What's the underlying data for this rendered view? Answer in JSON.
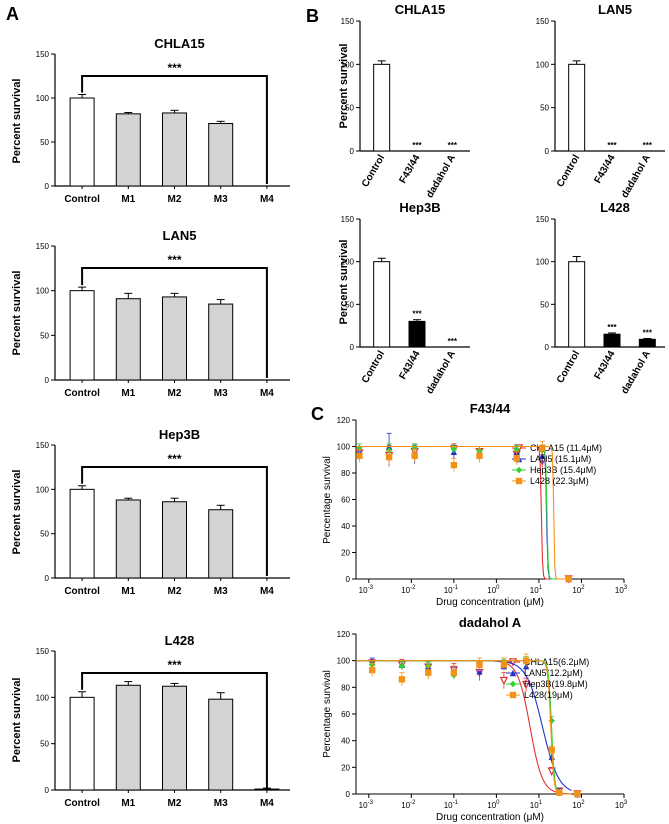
{
  "panels": {
    "A": "A",
    "B": "B",
    "C": "C"
  },
  "chart_data": [
    {
      "id": "A1",
      "type": "bar",
      "title": "CHLA15",
      "ylabel": "Percent survival",
      "ylim": [
        0,
        150
      ],
      "yticks": [
        0,
        50,
        100,
        150
      ],
      "categories": [
        "Control",
        "M1",
        "M2",
        "M3",
        "M4"
      ],
      "values": [
        100,
        82,
        83,
        71,
        0
      ],
      "errors": [
        4,
        1.5,
        3,
        2.5,
        0
      ],
      "significance": "***",
      "bracket": [
        0,
        4
      ]
    },
    {
      "id": "A2",
      "type": "bar",
      "title": "LAN5",
      "ylabel": "Percent survival",
      "ylim": [
        0,
        150
      ],
      "yticks": [
        0,
        50,
        100,
        150
      ],
      "categories": [
        "Control",
        "M1",
        "M2",
        "M3",
        "M4"
      ],
      "values": [
        100,
        91,
        93,
        85,
        0
      ],
      "errors": [
        4,
        6,
        4,
        5,
        0
      ],
      "significance": "***",
      "bracket": [
        0,
        4
      ]
    },
    {
      "id": "A3",
      "type": "bar",
      "title": "Hep3B",
      "ylabel": "Percent survival",
      "ylim": [
        0,
        150
      ],
      "yticks": [
        0,
        50,
        100,
        150
      ],
      "categories": [
        "Control",
        "M1",
        "M2",
        "M3",
        "M4"
      ],
      "values": [
        100,
        88,
        86,
        77,
        0
      ],
      "errors": [
        4,
        2,
        4,
        5,
        0
      ],
      "significance": "***",
      "bracket": [
        0,
        4
      ]
    },
    {
      "id": "A4",
      "type": "bar",
      "title": "L428",
      "ylabel": "Percent survival",
      "ylim": [
        0,
        150
      ],
      "yticks": [
        0,
        50,
        100,
        150
      ],
      "categories": [
        "Control",
        "M1",
        "M2",
        "M3",
        "M4"
      ],
      "values": [
        100,
        113,
        112,
        98,
        1
      ],
      "errors": [
        6,
        4,
        3,
        7,
        1
      ],
      "significance": "***",
      "bracket": [
        0,
        4
      ]
    },
    {
      "id": "B1",
      "type": "bar",
      "title": "CHLA15",
      "ylabel": "Percent survival",
      "ylim": [
        0,
        150
      ],
      "yticks": [
        0,
        50,
        100,
        150
      ],
      "categories": [
        "Control",
        "F43/44",
        "dadahol A"
      ],
      "values": [
        100,
        0,
        0
      ],
      "errors": [
        4,
        0,
        0
      ],
      "bar_fills": [
        "white",
        "black",
        "black"
      ],
      "stars": [
        "",
        "***",
        "***"
      ]
    },
    {
      "id": "B2",
      "type": "bar",
      "title": "LAN5",
      "ylabel": "",
      "ylim": [
        0,
        150
      ],
      "yticks": [
        0,
        50,
        100,
        150
      ],
      "categories": [
        "Control",
        "F43/44",
        "dadahol A"
      ],
      "values": [
        100,
        0,
        0
      ],
      "errors": [
        4,
        0,
        0
      ],
      "bar_fills": [
        "white",
        "black",
        "black"
      ],
      "stars": [
        "",
        "***",
        "***"
      ]
    },
    {
      "id": "B3",
      "type": "bar",
      "title": "Hep3B",
      "ylabel": "Percent survival",
      "ylim": [
        0,
        150
      ],
      "yticks": [
        0,
        50,
        100,
        150
      ],
      "categories": [
        "Control",
        "F43/44",
        "dadahol A"
      ],
      "values": [
        100,
        30,
        0
      ],
      "errors": [
        4,
        2,
        0
      ],
      "bar_fills": [
        "white",
        "black",
        "black"
      ],
      "stars": [
        "",
        "***",
        "***"
      ]
    },
    {
      "id": "B4",
      "type": "bar",
      "title": "L428",
      "ylabel": "",
      "ylim": [
        0,
        150
      ],
      "yticks": [
        0,
        50,
        100,
        150
      ],
      "categories": [
        "Control",
        "F43/44",
        "dadahol A"
      ],
      "values": [
        100,
        15,
        9
      ],
      "errors": [
        6,
        1.5,
        1
      ],
      "bar_fills": [
        "white",
        "black",
        "black"
      ],
      "stars": [
        "",
        "***",
        "***"
      ]
    },
    {
      "id": "C1",
      "type": "scatter",
      "title": "F43/44",
      "xlabel": "Drug concentration (μM)",
      "ylabel": "Percentage survival",
      "xscale": "log",
      "xlim": [
        0.0005,
        1000
      ],
      "ylim": [
        0,
        120
      ],
      "yticks": [
        0,
        20,
        40,
        60,
        80,
        100,
        120
      ],
      "xtick_exponents": [
        -3,
        -2,
        -1,
        0,
        1,
        2,
        3
      ],
      "x": [
        0.0006,
        0.003,
        0.012,
        0.1,
        0.4,
        3,
        12,
        50
      ],
      "series": [
        {
          "name": "CHLA15 (11.4μM)",
          "color": "#e03030",
          "marker": "triangle-down-open",
          "ic50": 11.4,
          "hill": 30,
          "values": [
            95,
            93,
            96,
            98,
            96,
            94,
            89,
            0
          ],
          "errors": [
            5,
            8,
            6,
            4,
            4,
            6,
            5,
            1
          ]
        },
        {
          "name": "LAN5 (15.1μM)",
          "color": "#1f33d1",
          "marker": "triangle-up",
          "ic50": 15.1,
          "hill": 30,
          "values": [
            96,
            100,
            94,
            96,
            95,
            96,
            93,
            0
          ],
          "errors": [
            4,
            10,
            7,
            5,
            5,
            5,
            6,
            1
          ]
        },
        {
          "name": "Hep3B (15.4μM)",
          "color": "#2fd22f",
          "marker": "diamond",
          "ic50": 15.4,
          "hill": 30,
          "values": [
            99,
            97,
            99,
            98,
            97,
            98,
            97,
            0
          ],
          "errors": [
            3,
            5,
            3,
            3,
            3,
            3,
            3,
            1
          ]
        },
        {
          "name": "L428 (22.3μM)",
          "color": "#f39219",
          "marker": "square",
          "ic50": 22.3,
          "hill": 40,
          "values": [
            93,
            92,
            93,
            86,
            93,
            91,
            99,
            0
          ],
          "errors": [
            5,
            5,
            5,
            5,
            5,
            5,
            5,
            1
          ]
        }
      ]
    },
    {
      "id": "C2",
      "type": "scatter",
      "title": "dadahol A",
      "xlabel": "Drug concentration (μM)",
      "ylabel": "Percentage survival",
      "xscale": "log",
      "xlim": [
        0.0005,
        1000
      ],
      "ylim": [
        0,
        120
      ],
      "yticks": [
        0,
        20,
        40,
        60,
        80,
        100,
        120
      ],
      "xtick_exponents": [
        -3,
        -2,
        -1,
        0,
        1,
        2,
        3
      ],
      "x": [
        0.0012,
        0.006,
        0.025,
        0.1,
        0.4,
        1.5,
        5,
        20,
        30,
        80
      ],
      "series": [
        {
          "name": "CHLA15(6.2μM)",
          "color": "#e03030",
          "marker": "triangle-down-open",
          "ic50": 6.2,
          "hill": 3,
          "values": [
            98,
            97,
            95,
            93,
            91,
            85,
            82,
            17,
            2,
            0
          ],
          "errors": [
            3,
            4,
            5,
            5,
            6,
            6,
            5,
            3,
            2,
            1
          ]
        },
        {
          "name": "LAN5(12.2μM)",
          "color": "#1f33d1",
          "marker": "triangle-up",
          "ic50": 12.2,
          "hill": 2.3,
          "values": [
            99,
            97,
            96,
            92,
            92,
            96,
            96,
            28,
            2,
            0
          ],
          "errors": [
            3,
            3,
            3,
            3,
            3,
            3,
            3,
            3,
            2,
            1
          ]
        },
        {
          "name": "Hep3B(19.8μM)",
          "color": "#2fd22f",
          "marker": "diamond",
          "ic50": 19.8,
          "hill": 12,
          "values": [
            97,
            96,
            96,
            89,
            97,
            98,
            100,
            55,
            1,
            0
          ],
          "errors": [
            3,
            3,
            3,
            3,
            3,
            3,
            3,
            3,
            2,
            1
          ]
        },
        {
          "name": "L428(19μM)",
          "color": "#f39219",
          "marker": "square",
          "ic50": 19,
          "hill": 12,
          "values": [
            93,
            86,
            91,
            91,
            97,
            97,
            100,
            33,
            1,
            0
          ],
          "errors": [
            5,
            5,
            5,
            5,
            5,
            5,
            5,
            3,
            1,
            1
          ]
        }
      ]
    }
  ]
}
